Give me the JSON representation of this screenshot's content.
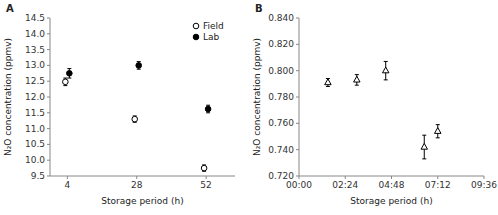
{
  "chart_data": [
    {
      "type": "scatter",
      "title": "A",
      "x_label": "Storage period (h)",
      "y_label": "N₂O concentration (ppmv)",
      "x": [
        4,
        28,
        52
      ],
      "series": [
        {
          "name": "Field",
          "color": "#000000",
          "marker": "open-circle",
          "values": [
            12.48,
            11.3,
            9.75
          ],
          "errors": [
            0.12,
            0.1,
            0.1
          ]
        },
        {
          "name": "Lab",
          "color": "#000000",
          "marker": "filled-circle",
          "values": [
            12.75,
            13.0,
            11.62
          ],
          "errors": [
            0.15,
            0.12,
            0.12
          ]
        }
      ],
      "xlim": [
        -2,
        62
      ],
      "xticks": [
        4,
        28,
        52
      ],
      "ylim": [
        9.5,
        14.5
      ],
      "yticks": [
        9.5,
        {
          "value": 10.0,
          "label": "10.0"
        },
        10.5,
        {
          "value": 11.0,
          "label": "11.0"
        },
        11.5,
        {
          "value": 12.0,
          "label": "12.0"
        },
        12.5,
        {
          "value": 13.0,
          "label": "13.0"
        },
        13.5,
        {
          "value": 14.0,
          "label": "14.0"
        },
        14.5
      ],
      "legend": "upper-right",
      "grid": false
    },
    {
      "type": "scatter",
      "title": "B",
      "x_label": "Storage period (h)",
      "y_label": "N₂O concentration (ppmv)",
      "x": [
        90,
        180,
        270,
        390,
        432
      ],
      "series": [
        {
          "color": "#000000",
          "marker": "open-triangle",
          "values": [
            0.791,
            0.793,
            0.8,
            0.742,
            0.754
          ],
          "errors": [
            0.003,
            0.004,
            0.007,
            0.009,
            0.005
          ]
        }
      ],
      "xlim": [
        0,
        576
      ],
      "xticks": [
        {
          "value": 0,
          "label": "00:00"
        },
        {
          "value": 144,
          "label": "02:24"
        },
        {
          "value": 288,
          "label": "04:48"
        },
        {
          "value": 432,
          "label": "07:12"
        },
        {
          "value": 576,
          "label": "09:36"
        }
      ],
      "ylim": [
        0.72,
        0.84
      ],
      "yticks": [
        {
          "value": 0.72,
          "label": "0.720"
        },
        {
          "value": 0.74,
          "label": "0.740"
        },
        {
          "value": 0.76,
          "label": "0.760"
        },
        {
          "value": 0.78,
          "label": "0.780"
        },
        {
          "value": 0.8,
          "label": "0.800"
        },
        {
          "value": 0.82,
          "label": "0.820"
        },
        {
          "value": 0.84,
          "label": "0.840"
        }
      ],
      "grid": false
    }
  ]
}
